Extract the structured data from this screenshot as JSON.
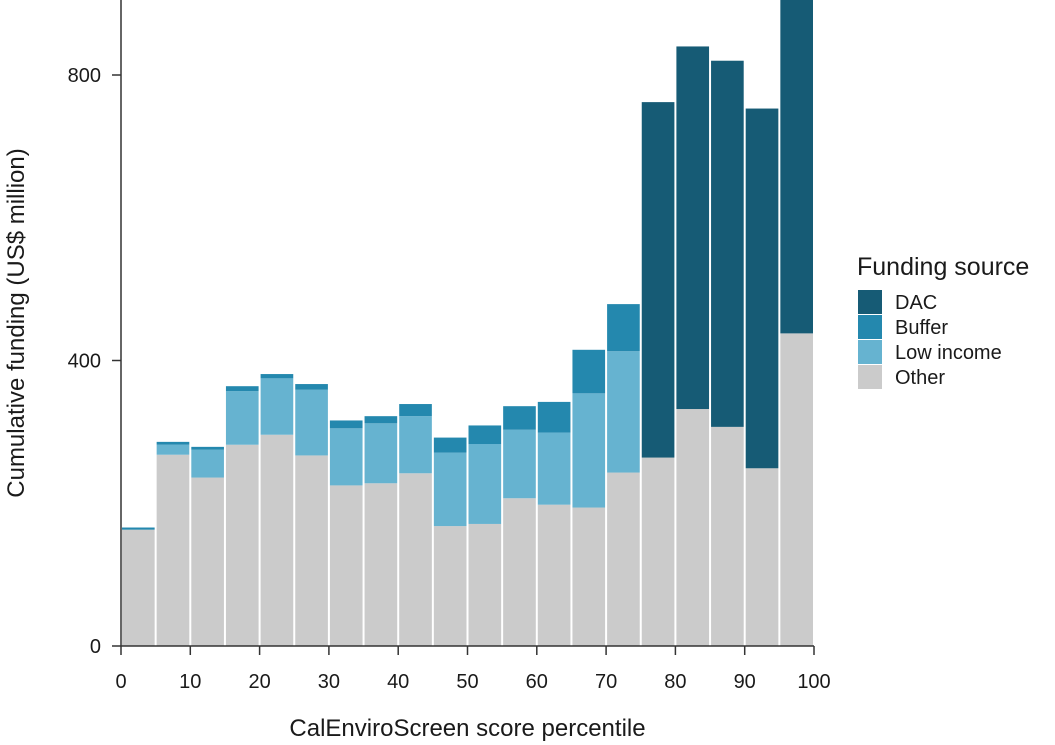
{
  "chart_data": {
    "type": "bar",
    "stacked": true,
    "title": "",
    "xlabel": "CalEnviroScreen score percentile",
    "ylabel": "Cumulative funding (US$ million)",
    "x": [
      2.5,
      7.5,
      12.5,
      17.5,
      22.5,
      27.5,
      32.5,
      37.5,
      42.5,
      47.5,
      52.5,
      57.5,
      62.5,
      67.5,
      72.5,
      77.5,
      82.5,
      87.5,
      92.5,
      97.5
    ],
    "bin_width": 5,
    "xlim": [
      0,
      100
    ],
    "ylim": [
      0,
      800
    ],
    "xticks": [
      0,
      10,
      20,
      30,
      40,
      50,
      60,
      70,
      80,
      90,
      100
    ],
    "yticks": [
      0,
      400,
      800
    ],
    "grid": false,
    "legend": {
      "title": "Funding source",
      "position": "right"
    },
    "series": [
      {
        "name": "Other",
        "color": "#cbcbcb",
        "values": [
          163,
          268,
          236,
          282,
          296,
          267,
          225,
          228,
          242,
          168,
          171,
          207,
          198,
          194,
          243,
          264,
          332,
          307,
          249,
          438
        ]
      },
      {
        "name": "Low income",
        "color": "#66b3d0",
        "values": [
          0,
          14,
          39,
          75,
          79,
          92,
          80,
          84,
          80,
          103,
          112,
          96,
          101,
          160,
          170,
          0,
          0,
          0,
          0,
          0
        ]
      },
      {
        "name": "Buffer",
        "color": "#2488ae",
        "values": [
          3,
          4,
          4,
          7,
          6,
          8,
          11,
          10,
          17,
          21,
          26,
          33,
          43,
          61,
          66,
          0,
          0,
          0,
          0,
          0
        ]
      },
      {
        "name": "DAC",
        "color": "#165b75",
        "values": [
          0,
          0,
          0,
          0,
          0,
          0,
          0,
          0,
          0,
          0,
          0,
          0,
          0,
          0,
          0,
          498,
          508,
          513,
          504,
          500
        ]
      }
    ],
    "legend_order": [
      "DAC",
      "Buffer",
      "Low income",
      "Other"
    ]
  }
}
